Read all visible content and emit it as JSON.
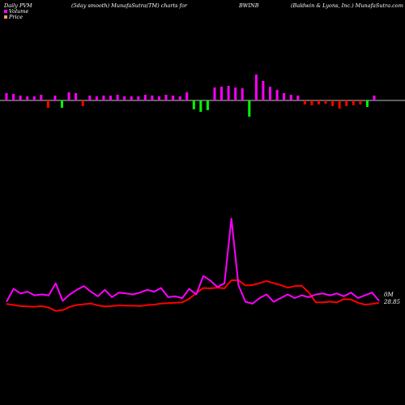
{
  "header": {
    "left": "Daily PVM",
    "smooth": "(5day smooth) MunafaSutra(TM) charts for",
    "symbol": "BWINB",
    "company": "(Baldwin & Lyons, Inc.) MunafaSutra.com"
  },
  "legend": {
    "volume": "Volume",
    "price": "Price"
  },
  "colors": {
    "background": "#000000",
    "volume_line": "#ff00ff",
    "price_line": "#ff0000",
    "baseline": "#ffffff",
    "bar_up": "#ff00ff",
    "bar_down": "#ff0000",
    "bar_green": "#00ff00",
    "legend_volume": "#ff00ff",
    "legend_price": "#ff9966"
  },
  "end_labels": {
    "volume": "0M",
    "price": "28.85"
  },
  "chart_data": {
    "type": "line",
    "series": [
      {
        "name": "Volume",
        "values": [
          10,
          24,
          19,
          21,
          17,
          18,
          17,
          30,
          11,
          18,
          23,
          27,
          21,
          16,
          23,
          15,
          20,
          19,
          18,
          20,
          23,
          21,
          25,
          15,
          16,
          14,
          24,
          18,
          38,
          33,
          26,
          30,
          100,
          28,
          10,
          8,
          14,
          18,
          10,
          14,
          18,
          14,
          17,
          15,
          18,
          19,
          17,
          19,
          16,
          20,
          14,
          17,
          20,
          11
        ]
      },
      {
        "name": "Price",
        "values": [
          30.6,
          30.3,
          30.0,
          29.9,
          29.8,
          30.0,
          29.6,
          28.7,
          28.9,
          29.8,
          30.3,
          30.5,
          30.7,
          30.2,
          29.9,
          30.0,
          30.2,
          30.1,
          30.1,
          30.0,
          30.3,
          30.4,
          30.7,
          30.8,
          30.9,
          31.0,
          32.0,
          33.5,
          34.9,
          34.8,
          35.0,
          34.8,
          37.0,
          37.0,
          35.6,
          35.7,
          36.2,
          36.8,
          36.2,
          35.7,
          35.0,
          35.4,
          35.5,
          33.7,
          31.0,
          31.0,
          31.2,
          31.0,
          31.9,
          31.8,
          30.9,
          30.4,
          30.6,
          30.9
        ]
      }
    ],
    "volume_bars": [
      {
        "dir": "up",
        "v": 0.9
      },
      {
        "dir": "up",
        "v": 0.8
      },
      {
        "dir": "up",
        "v": 0.6
      },
      {
        "dir": "up",
        "v": 0.5
      },
      {
        "dir": "up",
        "v": 0.5
      },
      {
        "dir": "up",
        "v": 0.7
      },
      {
        "dir": "down",
        "v": 0.9
      },
      {
        "dir": "up",
        "v": 0.6
      },
      {
        "dir": "green",
        "v": 0.9
      },
      {
        "dir": "up",
        "v": 1.0
      },
      {
        "dir": "up",
        "v": 0.9
      },
      {
        "dir": "down",
        "v": 0.7
      },
      {
        "dir": "up",
        "v": 0.6
      },
      {
        "dir": "up",
        "v": 0.5
      },
      {
        "dir": "up",
        "v": 0.6
      },
      {
        "dir": "up",
        "v": 0.6
      },
      {
        "dir": "up",
        "v": 0.7
      },
      {
        "dir": "up",
        "v": 0.5
      },
      {
        "dir": "up",
        "v": 0.5
      },
      {
        "dir": "up",
        "v": 0.5
      },
      {
        "dir": "up",
        "v": 0.7
      },
      {
        "dir": "up",
        "v": 0.6
      },
      {
        "dir": "up",
        "v": 0.5
      },
      {
        "dir": "up",
        "v": 0.7
      },
      {
        "dir": "up",
        "v": 0.6
      },
      {
        "dir": "up",
        "v": 0.5
      },
      {
        "dir": "up",
        "v": 1.0
      },
      {
        "dir": "green",
        "v": 1.1
      },
      {
        "dir": "green",
        "v": 1.4
      },
      {
        "dir": "green",
        "v": 1.2
      },
      {
        "dir": "up",
        "v": 1.6
      },
      {
        "dir": "up",
        "v": 1.7
      },
      {
        "dir": "up",
        "v": 1.8
      },
      {
        "dir": "up",
        "v": 1.6
      },
      {
        "dir": "up",
        "v": 1.5
      },
      {
        "dir": "green",
        "v": 2.0
      },
      {
        "dir": "up",
        "v": 3.2
      },
      {
        "dir": "up",
        "v": 2.4
      },
      {
        "dir": "up",
        "v": 1.7
      },
      {
        "dir": "up",
        "v": 1.3
      },
      {
        "dir": "up",
        "v": 0.9
      },
      {
        "dir": "up",
        "v": 0.7
      },
      {
        "dir": "up",
        "v": 0.6
      },
      {
        "dir": "down",
        "v": 0.5
      },
      {
        "dir": "down",
        "v": 0.6
      },
      {
        "dir": "down",
        "v": 0.5
      },
      {
        "dir": "down",
        "v": 0.4
      },
      {
        "dir": "down",
        "v": 0.7
      },
      {
        "dir": "down",
        "v": 1.0
      },
      {
        "dir": "down",
        "v": 0.7
      },
      {
        "dir": "down",
        "v": 0.6
      },
      {
        "dir": "down",
        "v": 0.5
      },
      {
        "dir": "green",
        "v": 0.8
      },
      {
        "dir": "up",
        "v": 0.6
      }
    ],
    "title": "",
    "xlabel": "",
    "ylabel": "",
    "grid": false,
    "legend_position": "top-left"
  }
}
